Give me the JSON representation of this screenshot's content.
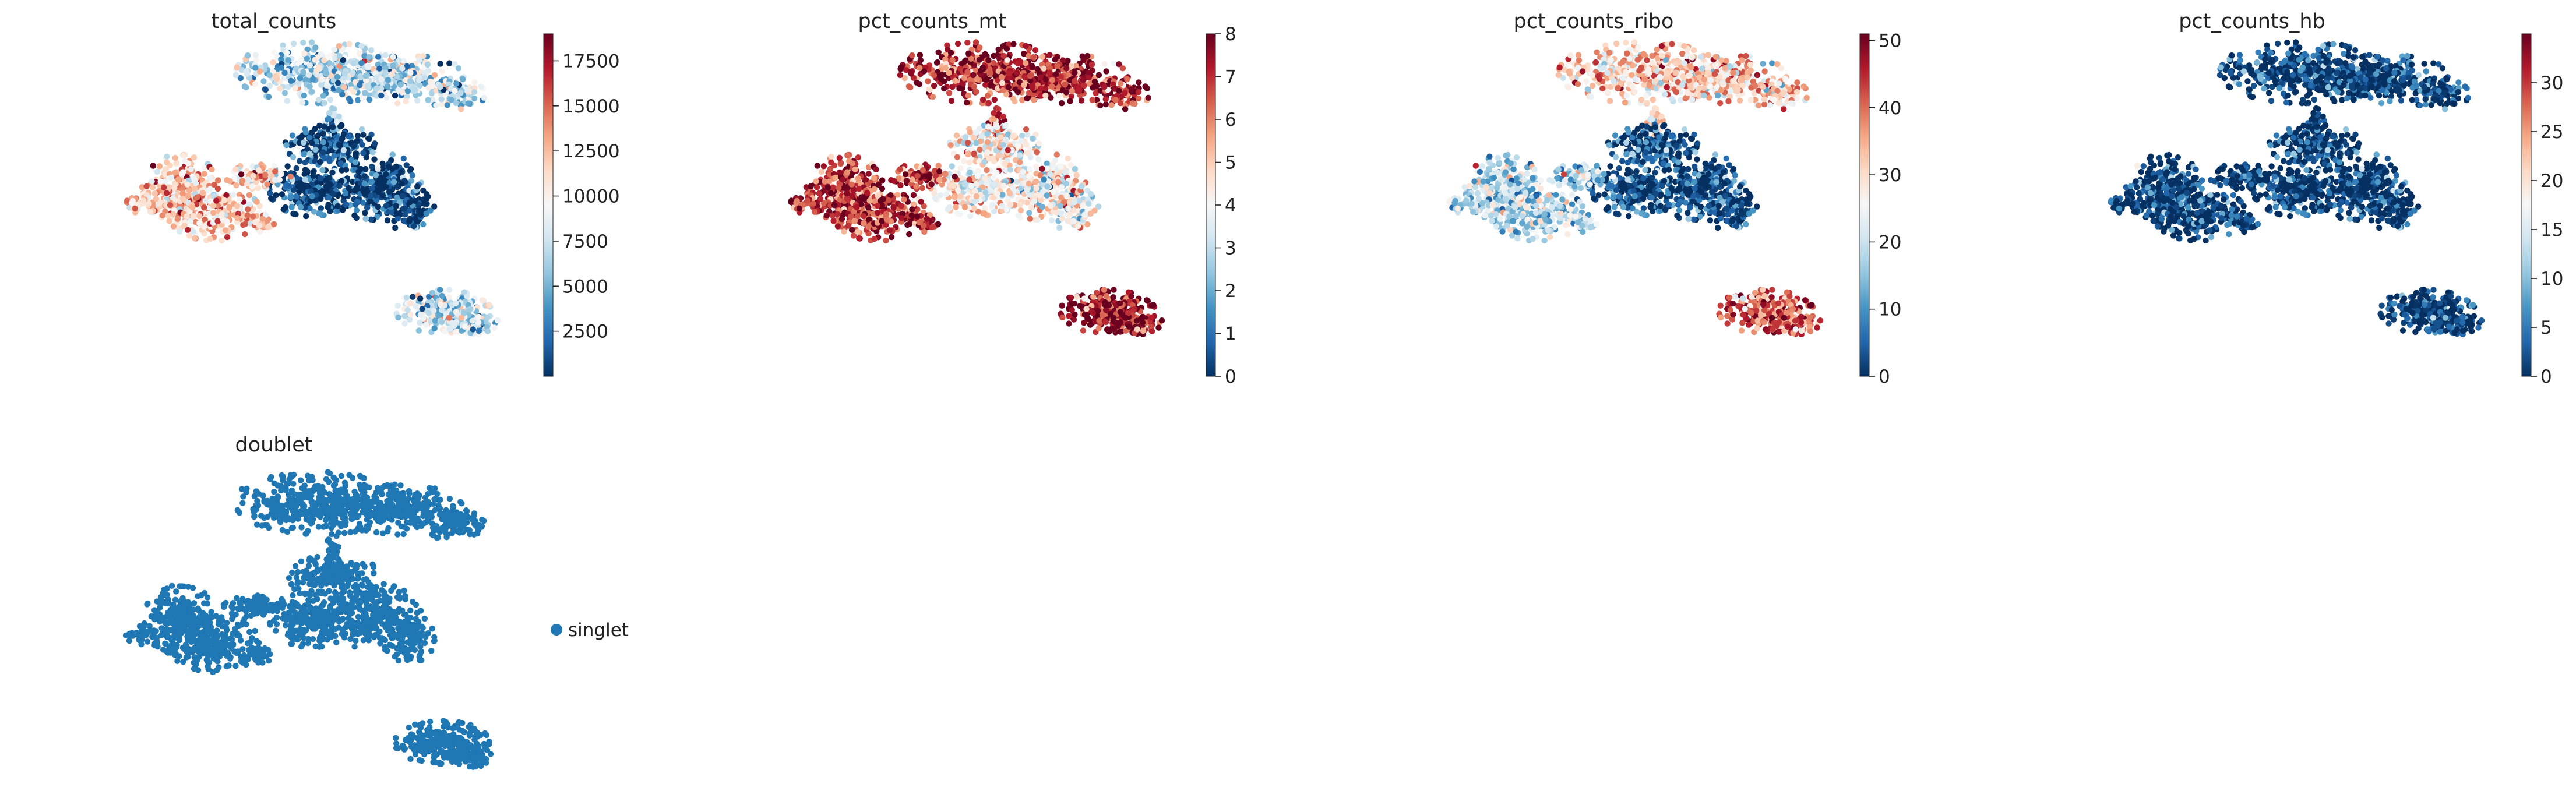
{
  "chart_data": [
    {
      "type": "scatter",
      "title": "total_counts",
      "colormap": "RdBu_r",
      "colorbar": {
        "min": 0,
        "max": 19000,
        "ticks": [
          2500,
          5000,
          7500,
          10000,
          12500,
          15000,
          17500
        ],
        "tick_labels": [
          "2500",
          "5000",
          "7500",
          "10000",
          "12500",
          "15000",
          "17500"
        ]
      },
      "cluster_values": {
        "top": 0.35,
        "middle": 0.03,
        "left_lobe": 0.62,
        "bottom_right": 0.38
      },
      "axes": "off"
    },
    {
      "type": "scatter",
      "title": "pct_counts_mt",
      "colormap": "RdBu_r",
      "colorbar": {
        "min": 0,
        "max": 8,
        "ticks": [
          0,
          1,
          2,
          3,
          4,
          5,
          6,
          7,
          8
        ],
        "tick_labels": [
          "0",
          "1",
          "2",
          "3",
          "4",
          "5",
          "6",
          "7",
          "8"
        ]
      },
      "cluster_values": {
        "top": 0.88,
        "middle": 0.52,
        "left_lobe": 0.86,
        "bottom_right": 0.93
      },
      "axes": "off"
    },
    {
      "type": "scatter",
      "title": "pct_counts_ribo",
      "colormap": "RdBu_r",
      "colorbar": {
        "min": 0,
        "max": 51,
        "ticks": [
          0,
          10,
          20,
          30,
          40,
          50
        ],
        "tick_labels": [
          "0",
          "10",
          "20",
          "30",
          "40",
          "50"
        ]
      },
      "cluster_values": {
        "top": 0.6,
        "middle": 0.05,
        "left_lobe": 0.35,
        "bottom_right": 0.8
      },
      "axes": "off"
    },
    {
      "type": "scatter",
      "title": "pct_counts_hb",
      "colormap": "RdBu_r",
      "colorbar": {
        "min": 0,
        "max": 35,
        "ticks": [
          0,
          5,
          10,
          15,
          20,
          25,
          30
        ],
        "tick_labels": [
          "0",
          "5",
          "10",
          "15",
          "20",
          "25",
          "30"
        ]
      },
      "cluster_values": {
        "top": 0.0,
        "middle": 0.0,
        "left_lobe": 0.0,
        "bottom_right": 0.0
      },
      "axes": "off"
    },
    {
      "type": "scatter",
      "title": "doublet",
      "categorical": true,
      "legend": {
        "position": "right",
        "entries": [
          {
            "name": "singlet",
            "color": "#1f77b4"
          }
        ]
      },
      "axes": "off"
    }
  ],
  "colors": {
    "colormap_stops": [
      "#053061",
      "#2166ac",
      "#4393c3",
      "#92c5de",
      "#d1e5f0",
      "#f7f7f7",
      "#fddbc7",
      "#f4a582",
      "#d6604d",
      "#b2182b",
      "#67001f"
    ],
    "categorical": "#1f77b4"
  }
}
